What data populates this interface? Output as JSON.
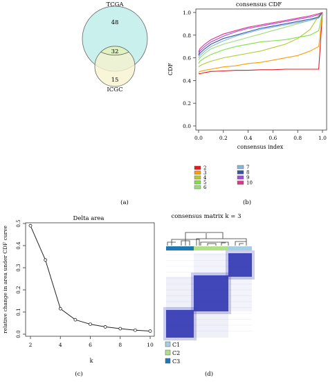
{
  "panel_labels": {
    "a": "(a)",
    "b": "(b)",
    "c": "(c)",
    "d": "(d)"
  },
  "chart_data": [
    {
      "type": "venn",
      "panel": "(a)",
      "sets": [
        {
          "name": "TCGA",
          "only": 48,
          "color": "#c9f0ec"
        },
        {
          "name": "ICGC",
          "only": 15,
          "color": "#f6f2cf"
        }
      ],
      "intersection": 32,
      "intersection_color": "#dff2c0"
    },
    {
      "type": "line",
      "panel": "(b)",
      "title": "consensus CDF",
      "xlabel": "consensus index",
      "ylabel": "CDF",
      "xlim": [
        0,
        1
      ],
      "ylim": [
        0,
        1
      ],
      "xticks": [
        "0.0",
        "0.2",
        "0.4",
        "0.6",
        "0.8",
        "1.0"
      ],
      "yticks": [
        "0.0",
        "0.2",
        "0.4",
        "0.6",
        "0.8",
        "1.0"
      ],
      "x": [
        0,
        0.01,
        0.05,
        0.1,
        0.2,
        0.3,
        0.4,
        0.5,
        0.6,
        0.7,
        0.8,
        0.9,
        0.97,
        1.0
      ],
      "series": [
        {
          "name": "2",
          "color": "#e41a1c",
          "values": [
            0.46,
            0.46,
            0.47,
            0.48,
            0.485,
            0.49,
            0.49,
            0.495,
            0.495,
            0.5,
            0.5,
            0.5,
            0.5,
            1.0
          ]
        },
        {
          "name": "3",
          "color": "#ff9d00",
          "values": [
            0.47,
            0.48,
            0.49,
            0.5,
            0.52,
            0.53,
            0.55,
            0.56,
            0.58,
            0.6,
            0.62,
            0.66,
            0.7,
            1.0
          ]
        },
        {
          "name": "4",
          "color": "#b7c931",
          "values": [
            0.52,
            0.53,
            0.55,
            0.57,
            0.6,
            0.62,
            0.64,
            0.66,
            0.69,
            0.72,
            0.77,
            0.85,
            0.97,
            1.0
          ]
        },
        {
          "name": "5",
          "color": "#7fe043",
          "values": [
            0.55,
            0.57,
            0.6,
            0.63,
            0.67,
            0.7,
            0.72,
            0.74,
            0.75,
            0.76,
            0.78,
            0.8,
            0.84,
            1.0
          ]
        },
        {
          "name": "6",
          "color": "#9bdc7a",
          "values": [
            0.58,
            0.6,
            0.64,
            0.68,
            0.72,
            0.75,
            0.78,
            0.81,
            0.84,
            0.87,
            0.9,
            0.93,
            0.96,
            1.0
          ]
        },
        {
          "name": "7",
          "color": "#7fb8d9",
          "values": [
            0.6,
            0.62,
            0.66,
            0.7,
            0.75,
            0.79,
            0.82,
            0.85,
            0.87,
            0.89,
            0.91,
            0.93,
            0.95,
            1.0
          ]
        },
        {
          "name": "8",
          "color": "#3355aa",
          "values": [
            0.62,
            0.64,
            0.68,
            0.72,
            0.77,
            0.8,
            0.83,
            0.86,
            0.88,
            0.9,
            0.92,
            0.94,
            0.96,
            1.0
          ]
        },
        {
          "name": "9",
          "color": "#a64dd6",
          "values": [
            0.63,
            0.66,
            0.7,
            0.74,
            0.79,
            0.83,
            0.86,
            0.88,
            0.9,
            0.92,
            0.94,
            0.96,
            0.98,
            1.0
          ]
        },
        {
          "name": "10",
          "color": "#e0338a",
          "values": [
            0.65,
            0.68,
            0.72,
            0.76,
            0.81,
            0.84,
            0.87,
            0.89,
            0.91,
            0.93,
            0.95,
            0.97,
            0.99,
            1.0
          ]
        }
      ]
    },
    {
      "type": "line",
      "panel": "(c)",
      "title": "Delta area",
      "xlabel": "k",
      "ylabel": "relative change in area under CDF curve",
      "xlim": [
        2,
        10
      ],
      "ylim": [
        0,
        0.5
      ],
      "xticks": [
        "2",
        "4",
        "6",
        "8",
        "10"
      ],
      "yticks": [
        "0.0",
        "0.1",
        "0.2",
        "0.3",
        "0.4",
        "0.5"
      ],
      "x": [
        2,
        3,
        4,
        5,
        6,
        7,
        8,
        9,
        10
      ],
      "values": [
        0.49,
        0.335,
        0.115,
        0.065,
        0.045,
        0.033,
        0.025,
        0.018,
        0.014
      ]
    },
    {
      "type": "heatmap",
      "panel": "(d)",
      "title": "consensus matrix k = 3",
      "clusters": [
        {
          "name": "C1",
          "color": "#a6cee3"
        },
        {
          "name": "C2",
          "color": "#b2df8a"
        },
        {
          "name": "C3",
          "color": "#1f78b4"
        }
      ],
      "cell_color": "#3a3fb5"
    }
  ]
}
